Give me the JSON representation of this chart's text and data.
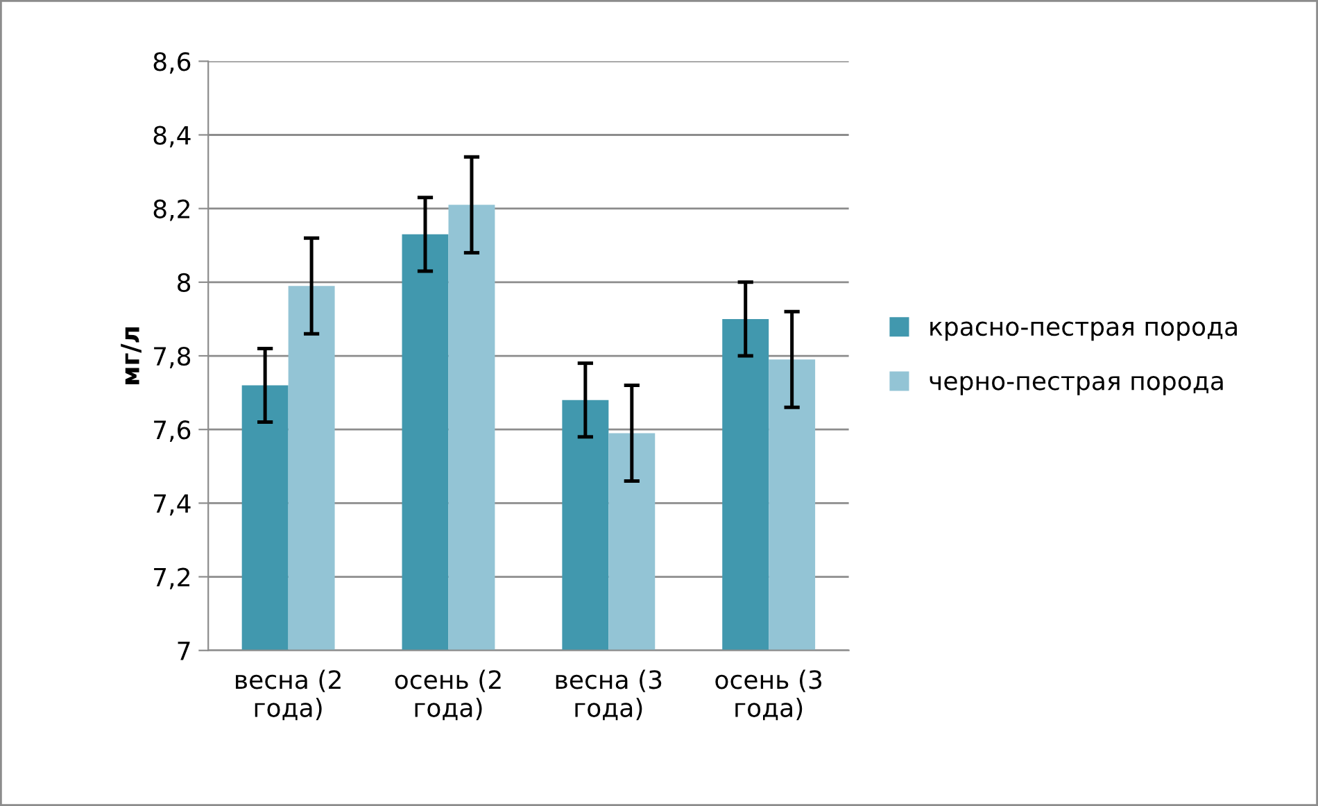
{
  "chart_data": {
    "type": "bar",
    "ylabel": "мг/л",
    "categories": [
      "весна (2 года)",
      "осень (2 года)",
      "весна (3 года)",
      "осень (3 года)"
    ],
    "series": [
      {
        "name": "красно-пестрая порода",
        "color": "#4198ae",
        "values": [
          7.72,
          8.13,
          7.68,
          7.9
        ],
        "errors": [
          0.1,
          0.1,
          0.1,
          0.1
        ]
      },
      {
        "name": "черно-пестрая порода",
        "color": "#93c4d5",
        "values": [
          7.99,
          8.21,
          7.59,
          7.79
        ],
        "errors": [
          0.13,
          0.13,
          0.13,
          0.13
        ]
      }
    ],
    "ylim": [
      7,
      8.6
    ],
    "yticks": [
      {
        "value": 7,
        "label": "7"
      },
      {
        "value": 7.2,
        "label": "7,2"
      },
      {
        "value": 7.4,
        "label": "7,4"
      },
      {
        "value": 7.6,
        "label": "7,6"
      },
      {
        "value": 7.8,
        "label": "7,8"
      },
      {
        "value": 8,
        "label": "8"
      },
      {
        "value": 8.2,
        "label": "8,2"
      },
      {
        "value": 8.4,
        "label": "8,4"
      },
      {
        "value": 8.6,
        "label": "8,6"
      }
    ],
    "grid": "y",
    "legend": "right"
  }
}
